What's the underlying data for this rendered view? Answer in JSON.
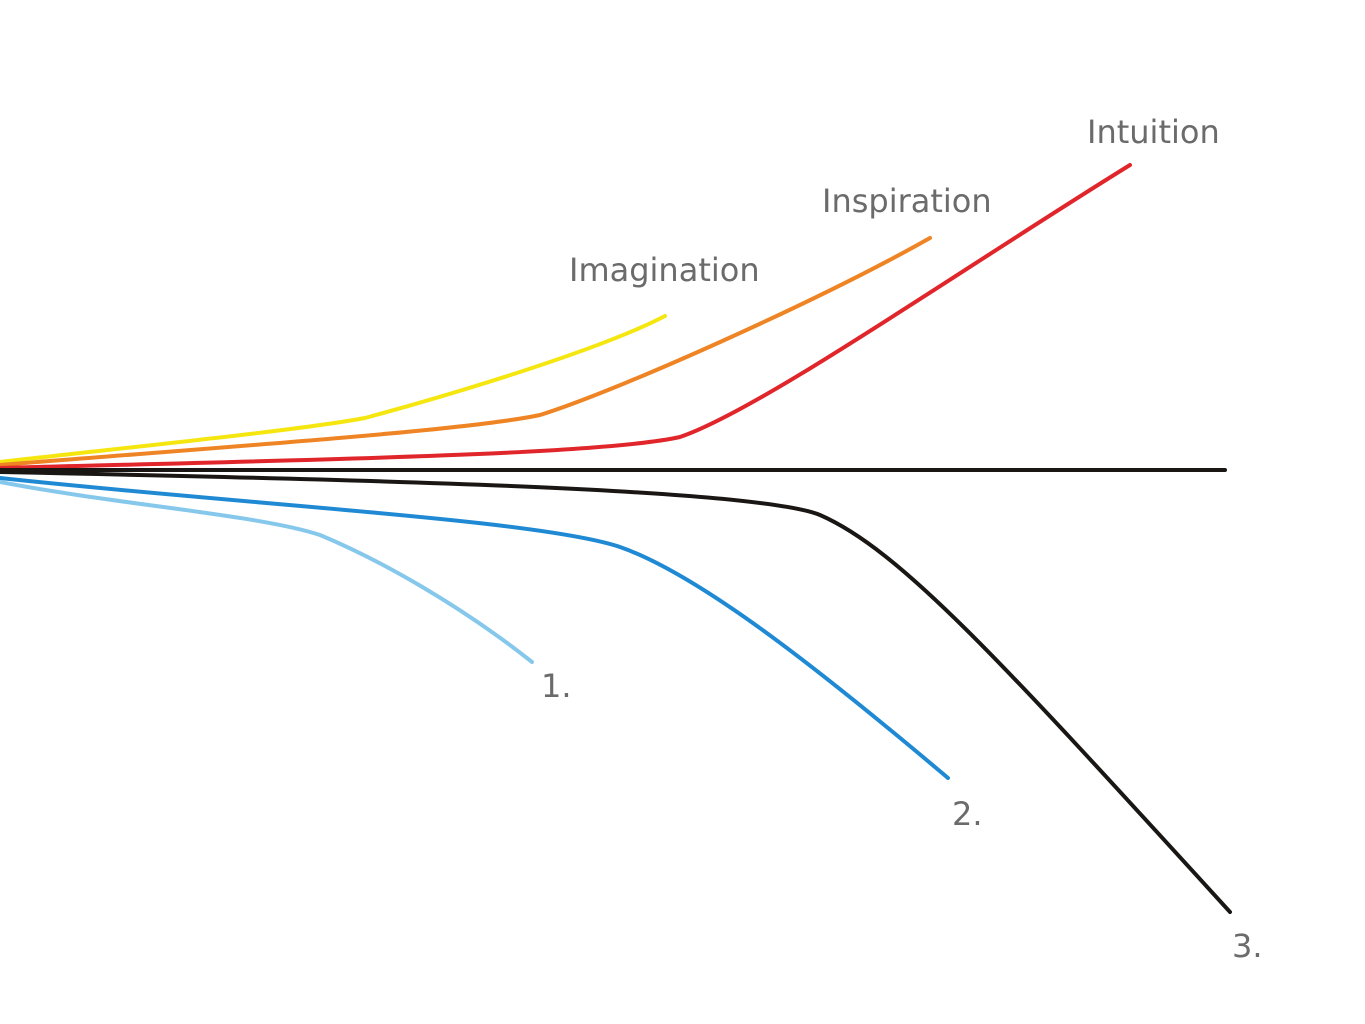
{
  "labels": {
    "imagination": "Imagination",
    "inspiration": "Inspiration",
    "intuition": "Intuition",
    "one": "1.",
    "two": "2.",
    "three": "3."
  }
}
